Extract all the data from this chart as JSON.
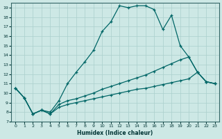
{
  "xlabel": "Humidex (Indice chaleur)",
  "background_color": "#cde8e5",
  "grid_color": "#aacfcc",
  "line_color": "#006666",
  "xlim": [
    -0.5,
    23.5
  ],
  "ylim": [
    7,
    19.5
  ],
  "xticks": [
    0,
    1,
    2,
    3,
    4,
    5,
    6,
    7,
    8,
    9,
    10,
    11,
    12,
    13,
    14,
    15,
    16,
    17,
    18,
    19,
    20,
    21,
    22,
    23
  ],
  "yticks": [
    7,
    8,
    9,
    10,
    11,
    12,
    13,
    14,
    15,
    16,
    17,
    18,
    19
  ],
  "line1_x": [
    0,
    1,
    2,
    3,
    4,
    5,
    6,
    7,
    8,
    9,
    10,
    11,
    12,
    13,
    14,
    15,
    16,
    17,
    18,
    19,
    20,
    21,
    22,
    23
  ],
  "line1_y": [
    10.5,
    9.5,
    7.8,
    8.2,
    8.0,
    9.2,
    11.0,
    12.2,
    13.3,
    14.5,
    16.5,
    17.5,
    19.2,
    19.0,
    19.2,
    19.2,
    18.8,
    16.7,
    18.2,
    15.0,
    13.8,
    12.2,
    11.2,
    11.0
  ],
  "line2_x": [
    0,
    1,
    2,
    3,
    4,
    5,
    6,
    7,
    8,
    9,
    10,
    11,
    12,
    13,
    14,
    15,
    16,
    17,
    18,
    19,
    20,
    21,
    22,
    23
  ],
  "line2_y": [
    10.5,
    9.5,
    7.8,
    8.2,
    7.8,
    8.8,
    9.2,
    9.4,
    9.7,
    10.0,
    10.4,
    10.7,
    11.0,
    11.3,
    11.6,
    11.9,
    12.3,
    12.7,
    13.1,
    13.5,
    13.8,
    12.2,
    11.2,
    11.0
  ],
  "line3_x": [
    0,
    1,
    2,
    3,
    4,
    5,
    6,
    7,
    8,
    9,
    10,
    11,
    12,
    13,
    14,
    15,
    16,
    17,
    18,
    19,
    20,
    21,
    22,
    23
  ],
  "line3_y": [
    10.5,
    9.5,
    7.8,
    8.2,
    7.8,
    8.5,
    8.8,
    9.0,
    9.2,
    9.4,
    9.6,
    9.8,
    10.0,
    10.2,
    10.4,
    10.5,
    10.7,
    10.9,
    11.1,
    11.3,
    11.5,
    12.2,
    11.2,
    11.0
  ]
}
